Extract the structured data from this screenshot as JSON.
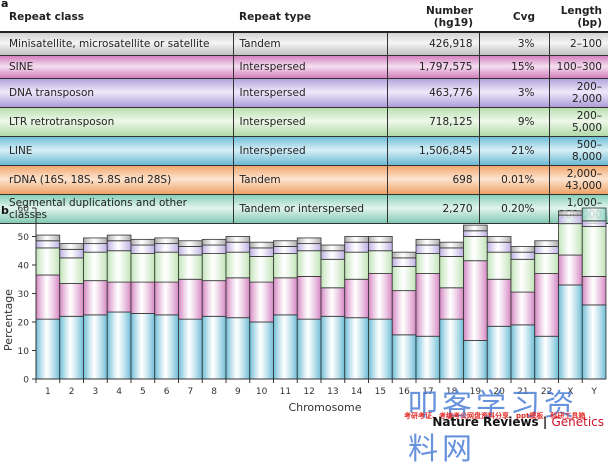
{
  "panel_a_label": "a",
  "panel_b_label": "b",
  "table": {
    "headers": [
      "Repeat class",
      "Repeat type",
      "Number (hg19)",
      "Cvg",
      "Length (bp)"
    ],
    "rows": [
      {
        "class": "Minisatellite, microsatellite or satellite",
        "type": "Tandem",
        "number": "426,918",
        "cvg": "3%",
        "length": "2–100",
        "color": "gray"
      },
      {
        "class": "SINE",
        "type": "Interspersed",
        "number": "1,797,575",
        "cvg": "15%",
        "length": "100–300",
        "color": "pink"
      },
      {
        "class": "DNA transposon",
        "type": "Interspersed",
        "number": "463,776",
        "cvg": "3%",
        "length": "200–2,000",
        "color": "purple"
      },
      {
        "class": "LTR retrotransposon",
        "type": "Interspersed",
        "number": "718,125",
        "cvg": "9%",
        "length": "200–5,000",
        "color": "green"
      },
      {
        "class": "LINE",
        "type": "Interspersed",
        "number": "1,506,845",
        "cvg": "21%",
        "length": "500–8,000",
        "color": "blue"
      },
      {
        "class": "rDNA (16S, 18S, 5.8S and 28S)",
        "type": "Tandem",
        "number": "698",
        "cvg": "0.01%",
        "length": "2,000–43,000",
        "color": "orange"
      },
      {
        "class": "Segmental duplications and other classes",
        "type": "Tandem or interspersed",
        "number": "2,270",
        "cvg": "0.20%",
        "length": "1,000–100,000",
        "color": "teal"
      }
    ]
  },
  "chart_data": {
    "type": "bar",
    "stacked": true,
    "title": "",
    "xlabel": "Chromosome",
    "ylabel": "Percentage",
    "ylim": [
      0,
      60
    ],
    "yticks": [
      0,
      10,
      20,
      30,
      40,
      50,
      60
    ],
    "categories": [
      "1",
      "2",
      "3",
      "4",
      "5",
      "6",
      "7",
      "8",
      "9",
      "10",
      "11",
      "12",
      "13",
      "14",
      "15",
      "16",
      "17",
      "18",
      "19",
      "20",
      "21",
      "22",
      "X",
      "Y"
    ],
    "series": [
      {
        "name": "LINE",
        "color": "#6cbcd6",
        "values": [
          21,
          22,
          22.5,
          23.5,
          23,
          22.5,
          21,
          22,
          21.5,
          20,
          22.5,
          21,
          22,
          21.5,
          21,
          15.5,
          15,
          21,
          13.5,
          18.5,
          19,
          15,
          33,
          26
        ]
      },
      {
        "name": "SINE",
        "color": "#d485c2",
        "values": [
          15.5,
          11.5,
          12,
          10.5,
          11,
          11.5,
          14,
          12.5,
          14,
          14,
          13,
          15,
          10,
          13.5,
          16,
          15.5,
          22,
          11,
          28,
          16.5,
          11.5,
          22,
          10.5,
          10
        ]
      },
      {
        "name": "LTR retrotransposon",
        "color": "#bfe3b5",
        "values": [
          9.5,
          9,
          10,
          11,
          10,
          10.5,
          8.5,
          9.5,
          9,
          9,
          8.5,
          9,
          10,
          9.5,
          8,
          8.5,
          7,
          11,
          8.5,
          9.5,
          11.5,
          7,
          11,
          17.5
        ]
      },
      {
        "name": "DNA transposon",
        "color": "#bcaee2",
        "values": [
          2.5,
          3,
          3,
          3.5,
          3,
          3,
          3,
          3,
          3.5,
          3,
          2.5,
          2.5,
          3,
          3.5,
          3,
          3,
          3,
          3,
          2,
          3.5,
          2.5,
          2.5,
          3,
          2
        ]
      },
      {
        "name": "Minisatellite, microsatellite or satellite",
        "color": "#a9a9a9",
        "values": [
          2,
          2,
          2,
          2,
          2,
          2,
          2,
          2,
          2,
          2,
          2,
          2,
          2,
          2,
          2,
          2,
          2,
          2,
          2,
          2,
          2,
          2,
          1.5,
          0
        ]
      },
      {
        "name": "Segmental duplications and other classes",
        "color": "#8fd3c0",
        "values": [
          0,
          0,
          0,
          0,
          0,
          0,
          0,
          0,
          0,
          0,
          0,
          0,
          0,
          0,
          0,
          0,
          0,
          0,
          0,
          0,
          0,
          0,
          0,
          4.5
        ]
      }
    ]
  },
  "footer": {
    "publisher": "Nature Reviews | ",
    "journal": "Genetics"
  },
  "watermark": {
    "main": "叩客学习资料网",
    "sub": "考研考证、考编考公网盘资料分享、ppt模板、科研工具箱"
  }
}
